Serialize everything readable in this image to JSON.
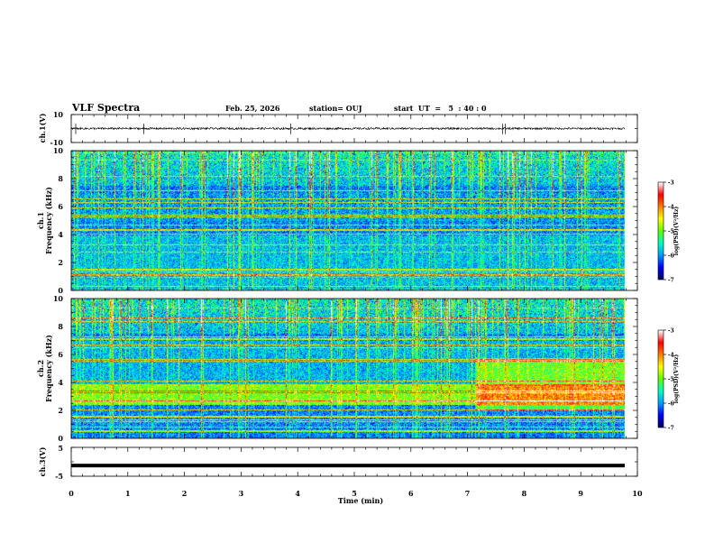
{
  "header": {
    "title": "VLF Spectra",
    "date": "Feb. 25, 2026",
    "station": "station= OUJ",
    "start": "start  UT  =   5  : 40 : 0"
  },
  "chart_data": [
    {
      "type": "line",
      "panel": "ch1-waveform",
      "ylabel": "ch.1(V)",
      "ylim": [
        -10,
        10
      ],
      "ytick_labels": [
        "10",
        "-10"
      ],
      "baseline": 0,
      "note": "noisy waveform around 0 V with occasional vertical spikes"
    },
    {
      "type": "heatmap",
      "panel": "ch1-spectrogram",
      "ylabel_channel": "ch.1",
      "ylabel": "Frequency  (kHz)",
      "ylim": [
        0,
        10
      ],
      "ytick_labels": [
        "0",
        "2",
        "4",
        "6",
        "8",
        "10"
      ],
      "xlim": [
        0,
        9.85
      ],
      "colorbar": {
        "label": "log(PSD)(V²/Hz)",
        "range": [
          -7,
          -3
        ],
        "tick_labels": [
          "-3",
          "-4",
          "-5",
          "-6",
          "-7"
        ]
      }
    },
    {
      "type": "heatmap",
      "panel": "ch2-spectrogram",
      "ylabel_channel": "ch.2",
      "ylabel": "Frequency  (kHz)",
      "ylim": [
        0,
        10
      ],
      "ytick_labels": [
        "0",
        "2",
        "4",
        "6",
        "8",
        "10"
      ],
      "xlim": [
        0,
        9.85
      ],
      "colorbar": {
        "label": "log(PSD)(V²/Hz)",
        "range": [
          -7,
          -3
        ],
        "tick_labels": [
          "-3",
          "-4",
          "-5",
          "-6",
          "-7"
        ]
      }
    },
    {
      "type": "line",
      "panel": "ch3-waveform",
      "ylabel": "ch.3(V)",
      "ylim": [
        -5,
        5
      ],
      "ytick_labels": [
        "5",
        "-5"
      ],
      "baseline": -1.3
    }
  ],
  "xaxis": {
    "label": "Time  (min)",
    "range": [
      0,
      10
    ],
    "tick_labels": [
      "0",
      "1",
      "2",
      "3",
      "4",
      "5",
      "6",
      "7",
      "8",
      "9",
      "10"
    ]
  },
  "colors": {
    "background": "#ffffff",
    "axis": "#000000",
    "colormap": [
      "#000060",
      "#0000ff",
      "#00a0ff",
      "#00ffc0",
      "#60ff00",
      "#ffff00",
      "#ff8000",
      "#ff0000",
      "#ffffff"
    ]
  }
}
